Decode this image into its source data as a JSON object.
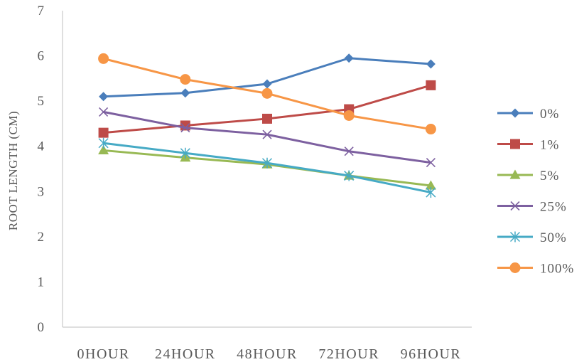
{
  "chart_data": {
    "type": "line",
    "title": "",
    "xlabel": "",
    "ylabel": "ROOT LENGTH (CM)",
    "categories": [
      "0HOUR",
      "24HOUR",
      "48HOUR",
      "72HOUR",
      "96HOUR"
    ],
    "ylim": [
      0,
      7
    ],
    "yticks": [
      "0",
      "1",
      "2",
      "3",
      "4",
      "5",
      "6",
      "7"
    ],
    "grid": false,
    "legend_position": "right",
    "series": [
      {
        "name": "0%",
        "color": "#4a7ebb",
        "marker": "diamond",
        "values": [
          5.1,
          5.18,
          5.38,
          5.95,
          5.82
        ]
      },
      {
        "name": "1%",
        "color": "#be4b48",
        "marker": "square",
        "values": [
          4.3,
          4.46,
          4.61,
          4.82,
          5.35
        ]
      },
      {
        "name": "5%",
        "color": "#98b954",
        "marker": "triangle",
        "values": [
          3.91,
          3.75,
          3.6,
          3.35,
          3.13
        ]
      },
      {
        "name": "25%",
        "color": "#7d60a0",
        "marker": "x",
        "values": [
          4.76,
          4.41,
          4.26,
          3.89,
          3.64
        ]
      },
      {
        "name": "50%",
        "color": "#46aac5",
        "marker": "star",
        "values": [
          4.07,
          3.85,
          3.63,
          3.35,
          2.98
        ]
      },
      {
        "name": "100%",
        "color": "#f79646",
        "marker": "circle",
        "values": [
          5.94,
          5.48,
          5.17,
          4.68,
          4.38
        ]
      }
    ]
  }
}
